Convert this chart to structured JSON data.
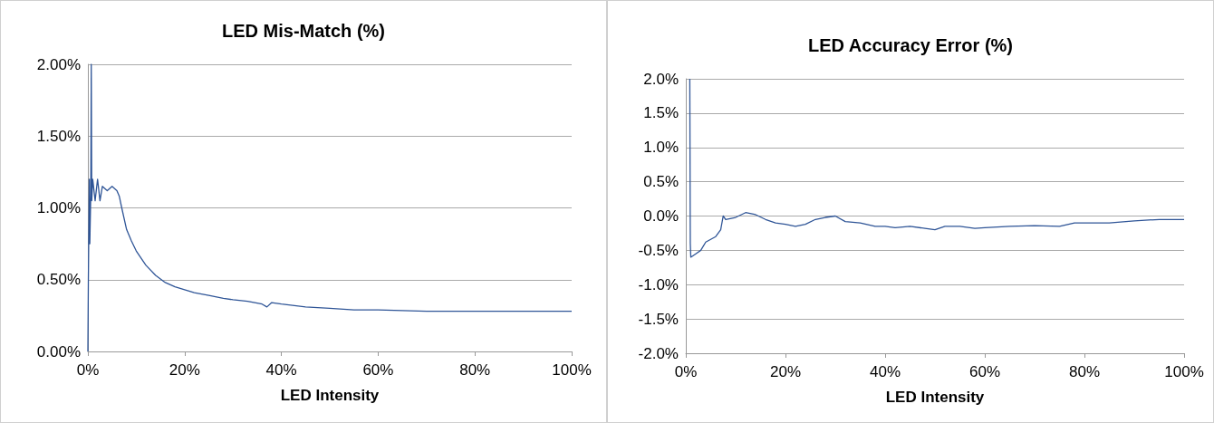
{
  "chart_data": [
    {
      "type": "line",
      "title": "LED Mis-Match (%)",
      "xlabel": "LED Intensity",
      "grid": "y",
      "xlim": [
        0,
        100
      ],
      "xticks": [
        {
          "value": 0,
          "label": "0%"
        },
        {
          "value": 20,
          "label": "20%"
        },
        {
          "value": 40,
          "label": "40%"
        },
        {
          "value": 60,
          "label": "60%"
        },
        {
          "value": 80,
          "label": "80%"
        },
        {
          "value": 100,
          "label": "100%"
        }
      ],
      "ylim": [
        0,
        2
      ],
      "yticks": [
        {
          "value": 0,
          "label": "0.00%"
        },
        {
          "value": 0.5,
          "label": "0.50%"
        },
        {
          "value": 1,
          "label": "1.00%"
        },
        {
          "value": 1.5,
          "label": "1.50%"
        },
        {
          "value": 2,
          "label": "2.00%"
        }
      ],
      "series": [
        {
          "color": "#2f5597",
          "x": [
            0,
            0.1,
            0.3,
            0.4,
            0.6,
            0.7,
            0.8,
            1,
            1.5,
            2,
            2.5,
            3,
            4,
            5,
            6,
            6.5,
            7,
            8,
            9,
            10,
            12,
            14,
            16,
            18,
            20,
            22,
            25,
            28,
            30,
            33,
            36,
            37,
            38,
            40,
            45,
            50,
            55,
            60,
            65,
            70,
            75,
            80,
            85,
            90,
            95,
            100
          ],
          "values": [
            0,
            0.5,
            1.2,
            0.75,
            1.1,
            2,
            1.05,
            1.2,
            1.05,
            1.2,
            1.05,
            1.15,
            1.12,
            1.15,
            1.12,
            1.08,
            1,
            0.85,
            0.77,
            0.7,
            0.6,
            0.53,
            0.48,
            0.45,
            0.43,
            0.41,
            0.39,
            0.37,
            0.36,
            0.35,
            0.33,
            0.31,
            0.34,
            0.33,
            0.31,
            0.3,
            0.29,
            0.29,
            0.285,
            0.28,
            0.28,
            0.28,
            0.28,
            0.28,
            0.28,
            0.28
          ]
        }
      ]
    },
    {
      "type": "line",
      "title": "LED Accuracy Error (%)",
      "xlabel": "LED Intensity",
      "grid": "y",
      "xlim": [
        0,
        100
      ],
      "xticks": [
        {
          "value": 0,
          "label": "0%"
        },
        {
          "value": 20,
          "label": "20%"
        },
        {
          "value": 40,
          "label": "40%"
        },
        {
          "value": 60,
          "label": "60%"
        },
        {
          "value": 80,
          "label": "80%"
        },
        {
          "value": 100,
          "label": "100%"
        }
      ],
      "ylim": [
        -2,
        2
      ],
      "yticks": [
        {
          "value": -2,
          "label": "-2.0%"
        },
        {
          "value": -1.5,
          "label": "-1.5%"
        },
        {
          "value": -1,
          "label": "-1.0%"
        },
        {
          "value": -0.5,
          "label": "-0.5%"
        },
        {
          "value": 0,
          "label": "0.0%"
        },
        {
          "value": 0.5,
          "label": "0.5%"
        },
        {
          "value": 1,
          "label": "1.0%"
        },
        {
          "value": 1.5,
          "label": "1.5%"
        },
        {
          "value": 2,
          "label": "2.0%"
        }
      ],
      "series": [
        {
          "color": "#2f5597",
          "x": [
            0.8,
            0.9,
            1,
            2,
            3,
            4,
            6,
            7,
            7.5,
            8,
            10,
            12,
            14,
            16,
            18,
            20,
            22,
            24,
            26,
            28,
            30,
            32,
            35,
            38,
            40,
            42,
            45,
            48,
            50,
            52,
            55,
            58,
            60,
            65,
            70,
            75,
            78,
            80,
            85,
            90,
            95,
            100
          ],
          "values": [
            2,
            -0.4,
            -0.6,
            -0.55,
            -0.5,
            -0.38,
            -0.3,
            -0.2,
            0,
            -0.05,
            -0.02,
            0.05,
            0.02,
            -0.05,
            -0.1,
            -0.12,
            -0.15,
            -0.12,
            -0.05,
            -0.02,
            0,
            -0.08,
            -0.1,
            -0.15,
            -0.15,
            -0.17,
            -0.15,
            -0.18,
            -0.2,
            -0.15,
            -0.15,
            -0.18,
            -0.17,
            -0.15,
            -0.14,
            -0.15,
            -0.1,
            -0.1,
            -0.1,
            -0.07,
            -0.05,
            -0.05
          ]
        }
      ]
    }
  ]
}
